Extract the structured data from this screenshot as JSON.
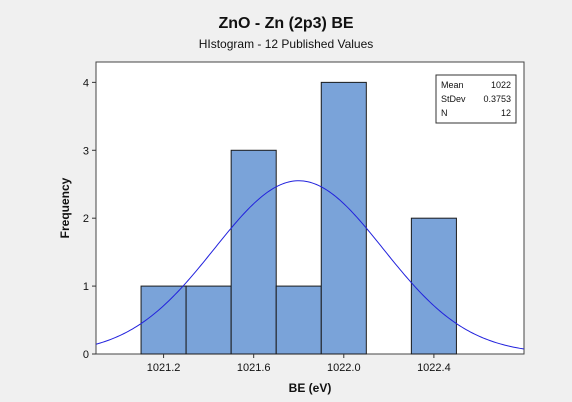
{
  "chart_data": {
    "type": "bar",
    "title": "ZnO - Zn (2p3) BE",
    "subtitle": "HIstogram - 12 Published Values",
    "xlabel": "BE (eV)",
    "ylabel": "Frequency",
    "xlim": [
      1020.9,
      1022.8
    ],
    "ylim": [
      0,
      4.3
    ],
    "x_ticks": [
      1021.2,
      1021.6,
      1022.0,
      1022.4
    ],
    "x_tick_labels": [
      "1021.2",
      "1021.6",
      "1022.0",
      "1022.4"
    ],
    "y_ticks": [
      0,
      1,
      2,
      3,
      4
    ],
    "y_tick_labels": [
      "0",
      "1",
      "2",
      "3",
      "4"
    ],
    "bins": [
      {
        "from": 1021.1,
        "to": 1021.3,
        "count": 1
      },
      {
        "from": 1021.3,
        "to": 1021.5,
        "count": 1
      },
      {
        "from": 1021.5,
        "to": 1021.7,
        "count": 3
      },
      {
        "from": 1021.7,
        "to": 1021.9,
        "count": 1
      },
      {
        "from": 1021.9,
        "to": 1022.1,
        "count": 4
      },
      {
        "from": 1022.1,
        "to": 1022.3,
        "count": 0
      },
      {
        "from": 1022.3,
        "to": 1022.5,
        "count": 2
      }
    ],
    "normal_curve": {
      "mean": 1021.8,
      "stdev": 0.3753,
      "n": 12,
      "bin_width": 0.2,
      "color": "#2222dd"
    },
    "bar_color": "#7aa3d9",
    "bar_edge_color": "#1a1a1a",
    "grid": false,
    "legend": {
      "placement": "top-right",
      "rows": [
        {
          "label": "Mean",
          "value": "1022"
        },
        {
          "label": "StDev",
          "value": "0.3753"
        },
        {
          "label": "N",
          "value": "12"
        }
      ]
    }
  }
}
